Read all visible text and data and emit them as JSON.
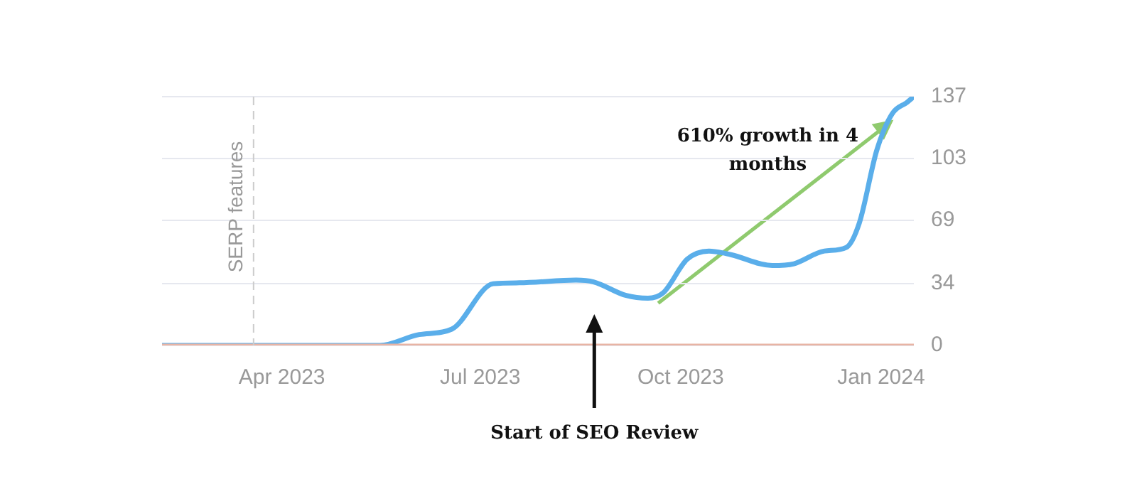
{
  "chart_data": {
    "type": "line",
    "series": [
      {
        "color": "#e8b4a4",
        "x": [
          "2023-02-05",
          "2024-01-16"
        ],
        "values": [
          0,
          0
        ]
      },
      {
        "color": "#5aaeea",
        "x": [
          "2023-02-05",
          "2023-05-16",
          "2023-06-03",
          "2023-06-18",
          "2023-07-07",
          "2023-07-19",
          "2023-08-14",
          "2023-08-22",
          "2023-09-06",
          "2023-09-16",
          "2023-09-23",
          "2023-10-04",
          "2023-10-14",
          "2023-10-24",
          "2023-11-12",
          "2023-11-22",
          "2023-12-06",
          "2023-12-16",
          "2023-12-22",
          "2023-12-30",
          "2024-01-06",
          "2024-01-13",
          "2024-01-16"
        ],
        "values": [
          0,
          0,
          6,
          9,
          34,
          34.5,
          36,
          35,
          27.5,
          26,
          29,
          47.5,
          52,
          50,
          44,
          45,
          52,
          54,
          67.5,
          107.5,
          127.5,
          134,
          137
        ]
      }
    ],
    "xlim": [
      "2023-02-05",
      "2024-01-16"
    ],
    "xticks": [
      {
        "value": "2023-04-01",
        "label": "Apr 2023"
      },
      {
        "value": "2023-07-01",
        "label": "Jul 2023"
      },
      {
        "value": "2023-10-01",
        "label": "Oct 2023"
      },
      {
        "value": "2024-01-01",
        "label": "Jan 2024"
      }
    ],
    "ylim": [
      0,
      137
    ],
    "yticks": [
      0,
      34,
      69,
      103,
      137
    ],
    "grid": "y",
    "legend": false,
    "marker": "none",
    "line_style": "solid",
    "ref_lines": [
      {
        "axis": "x",
        "value": "2023-03-19",
        "label": "SERP features",
        "color": "#cccccc",
        "line_style": "dashed"
      }
    ],
    "annotations": [
      "610% growth in 4 months",
      "Start of SEO Review"
    ]
  }
}
